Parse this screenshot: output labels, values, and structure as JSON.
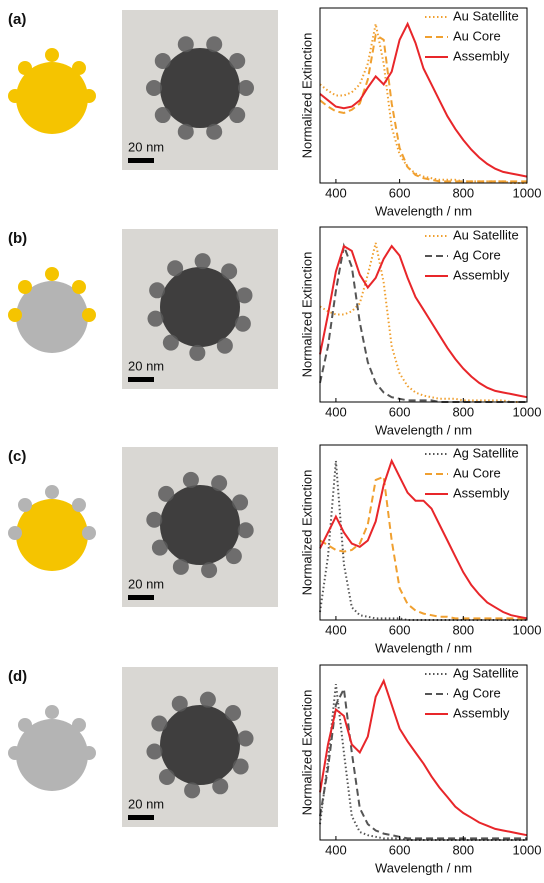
{
  "panels": [
    {
      "label": "(a)",
      "scale_bar": "20 nm"
    },
    {
      "label": "(b)",
      "scale_bar": "20 nm"
    },
    {
      "label": "(c)",
      "scale_bar": "20 nm"
    },
    {
      "label": "(d)",
      "scale_bar": "20 nm"
    }
  ],
  "chart_data": [
    {
      "type": "line",
      "x_label": "Wavelength / nm",
      "y_label": "Normalized Extinction",
      "x": [
        350,
        375,
        400,
        425,
        450,
        475,
        500,
        525,
        550,
        575,
        600,
        625,
        650,
        675,
        700,
        725,
        750,
        775,
        800,
        825,
        850,
        875,
        900,
        925,
        950,
        975,
        1000
      ],
      "xlim": [
        350,
        1000
      ],
      "xticks": [
        400,
        600,
        800,
        1000
      ],
      "ylim": [
        0,
        1.1
      ],
      "legend": "upper right",
      "series": [
        {
          "name": "Au Satellite",
          "color": "#f0a030",
          "style": "dotted",
          "values": [
            0.62,
            0.58,
            0.55,
            0.55,
            0.57,
            0.62,
            0.75,
            1.0,
            0.75,
            0.35,
            0.18,
            0.1,
            0.06,
            0.04,
            0.03,
            0.02,
            0.02,
            0.02,
            0.01,
            0.01,
            0.01,
            0.01,
            0.01,
            0.01,
            0,
            0,
            0
          ]
        },
        {
          "name": "Au Core",
          "color": "#f0a030",
          "style": "dashed",
          "values": [
            0.52,
            0.48,
            0.45,
            0.44,
            0.46,
            0.5,
            0.65,
            0.93,
            0.9,
            0.5,
            0.22,
            0.1,
            0.05,
            0.03,
            0.02,
            0.01,
            0.01,
            0.01,
            0.01,
            0.01,
            0.01,
            0.01,
            0.01,
            0.01,
            0.01,
            0.01,
            0.01
          ]
        },
        {
          "name": "Assembly",
          "color": "#e8262a",
          "style": "solid",
          "values": [
            0.56,
            0.52,
            0.48,
            0.47,
            0.48,
            0.52,
            0.6,
            0.67,
            0.62,
            0.7,
            0.9,
            1.0,
            0.88,
            0.72,
            0.62,
            0.52,
            0.42,
            0.34,
            0.27,
            0.21,
            0.16,
            0.12,
            0.09,
            0.07,
            0.06,
            0.05,
            0.04
          ]
        }
      ]
    },
    {
      "type": "line",
      "x_label": "Wavelength / nm",
      "y_label": "Normalized Extinction",
      "x": [
        350,
        375,
        400,
        425,
        450,
        475,
        500,
        525,
        550,
        575,
        600,
        625,
        650,
        675,
        700,
        725,
        750,
        775,
        800,
        825,
        850,
        875,
        900,
        925,
        950,
        975,
        1000
      ],
      "xlim": [
        350,
        1000
      ],
      "xticks": [
        400,
        600,
        800,
        1000
      ],
      "ylim": [
        0,
        1.1
      ],
      "legend": "upper right",
      "series": [
        {
          "name": "Au Satellite",
          "color": "#f0a030",
          "style": "dotted",
          "values": [
            0.6,
            0.57,
            0.55,
            0.55,
            0.57,
            0.62,
            0.8,
            1.0,
            0.75,
            0.35,
            0.18,
            0.1,
            0.06,
            0.04,
            0.03,
            0.02,
            0.02,
            0.02,
            0.01,
            0.01,
            0.01,
            0.01,
            0.01,
            0.01,
            0,
            0,
            0
          ]
        },
        {
          "name": "Ag Core",
          "color": "#555555",
          "style": "dashed",
          "values": [
            0.12,
            0.35,
            0.7,
            0.98,
            0.85,
            0.5,
            0.25,
            0.12,
            0.06,
            0.03,
            0.02,
            0.01,
            0.01,
            0.01,
            0.01,
            0,
            0,
            0,
            0,
            0,
            0,
            0,
            0,
            0,
            0,
            0,
            0
          ]
        },
        {
          "name": "Assembly",
          "color": "#e8262a",
          "style": "solid",
          "values": [
            0.3,
            0.55,
            0.82,
            0.98,
            0.95,
            0.8,
            0.72,
            0.78,
            0.9,
            0.98,
            0.92,
            0.78,
            0.66,
            0.58,
            0.5,
            0.42,
            0.34,
            0.27,
            0.21,
            0.16,
            0.12,
            0.09,
            0.07,
            0.06,
            0.05,
            0.04,
            0.03
          ]
        }
      ]
    },
    {
      "type": "line",
      "x_label": "Wavelength / nm",
      "y_label": "Normalized Extinction",
      "x": [
        350,
        375,
        400,
        425,
        450,
        475,
        500,
        525,
        550,
        575,
        600,
        625,
        650,
        675,
        700,
        725,
        750,
        775,
        800,
        825,
        850,
        875,
        900,
        925,
        950,
        975,
        1000
      ],
      "xlim": [
        350,
        1000
      ],
      "xticks": [
        400,
        600,
        800,
        1000
      ],
      "ylim": [
        0,
        1.1
      ],
      "legend": "upper right",
      "series": [
        {
          "name": "Ag Satellite",
          "color": "#555555",
          "style": "dotted",
          "values": [
            0.05,
            0.4,
            1.0,
            0.35,
            0.08,
            0.03,
            0.02,
            0.01,
            0.01,
            0.01,
            0.01,
            0,
            0,
            0,
            0,
            0,
            0,
            0,
            0,
            0,
            0,
            0,
            0,
            0,
            0,
            0,
            0
          ]
        },
        {
          "name": "Au Core",
          "color": "#f0a030",
          "style": "dashed",
          "values": [
            0.5,
            0.47,
            0.44,
            0.43,
            0.44,
            0.48,
            0.6,
            0.88,
            0.9,
            0.5,
            0.2,
            0.1,
            0.06,
            0.04,
            0.03,
            0.02,
            0.02,
            0.01,
            0.01,
            0.01,
            0.01,
            0.01,
            0.01,
            0.01,
            0.01,
            0.01,
            0.01
          ]
        },
        {
          "name": "Assembly",
          "color": "#e8262a",
          "style": "solid",
          "values": [
            0.45,
            0.55,
            0.65,
            0.55,
            0.48,
            0.46,
            0.5,
            0.62,
            0.85,
            1.0,
            0.9,
            0.8,
            0.75,
            0.75,
            0.7,
            0.6,
            0.5,
            0.4,
            0.3,
            0.22,
            0.16,
            0.11,
            0.08,
            0.05,
            0.03,
            0.02,
            0.01
          ]
        }
      ]
    },
    {
      "type": "line",
      "x_label": "Wavelength / nm",
      "y_label": "Normalized Extinction",
      "x": [
        350,
        375,
        400,
        425,
        450,
        475,
        500,
        525,
        550,
        575,
        600,
        625,
        650,
        675,
        700,
        725,
        750,
        775,
        800,
        825,
        850,
        875,
        900,
        925,
        950,
        975,
        1000
      ],
      "xlim": [
        350,
        1000
      ],
      "xticks": [
        400,
        600,
        800,
        1000
      ],
      "ylim": [
        0,
        1.1
      ],
      "legend": "upper right",
      "series": [
        {
          "name": "Ag Satellite",
          "color": "#555555",
          "style": "dotted",
          "values": [
            0.1,
            0.5,
            0.98,
            0.55,
            0.15,
            0.05,
            0.03,
            0.02,
            0.01,
            0.01,
            0.01,
            0,
            0,
            0,
            0,
            0,
            0,
            0,
            0,
            0,
            0,
            0,
            0,
            0,
            0,
            0,
            0
          ]
        },
        {
          "name": "Ag Core",
          "color": "#555555",
          "style": "dashed",
          "values": [
            0.15,
            0.45,
            0.85,
            0.95,
            0.55,
            0.2,
            0.1,
            0.06,
            0.04,
            0.03,
            0.02,
            0.01,
            0.01,
            0.01,
            0.01,
            0.01,
            0.01,
            0.01,
            0.01,
            0.01,
            0.01,
            0.01,
            0.01,
            0.01,
            0.01,
            0.01,
            0.01
          ]
        },
        {
          "name": "Assembly",
          "color": "#e8262a",
          "style": "solid",
          "values": [
            0.3,
            0.6,
            0.82,
            0.78,
            0.6,
            0.55,
            0.65,
            0.9,
            1.0,
            0.85,
            0.7,
            0.62,
            0.55,
            0.48,
            0.4,
            0.33,
            0.27,
            0.21,
            0.17,
            0.14,
            0.11,
            0.09,
            0.07,
            0.06,
            0.05,
            0.04,
            0.03
          ]
        }
      ]
    }
  ]
}
